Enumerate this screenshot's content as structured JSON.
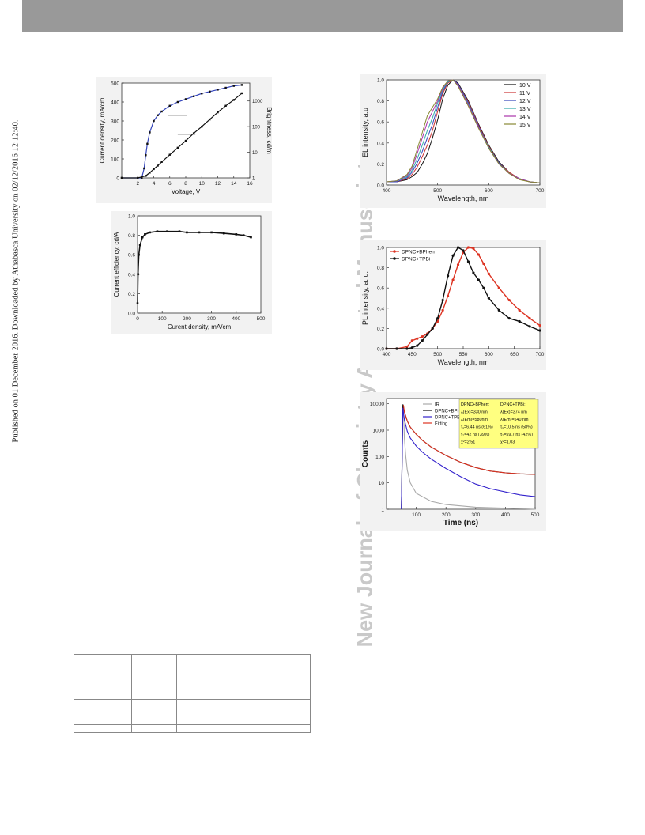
{
  "sidenote": "Published on 01 December 2016. Downloaded by Athabasca University on 02/12/2016 12:12:40.",
  "watermark": "New Journal of Chemistry Accepted Manuscript",
  "colors": {
    "header_bar": "#999999",
    "watermark": "#c9c9c9",
    "blue": "#3344bb",
    "red": "#dd3322",
    "black": "#111111",
    "legend_yellow": "#ffff80"
  },
  "chart_data": [
    {
      "id": "jvl",
      "type": "line",
      "xlabel": "Voltage, V",
      "ylabel": "Current density, mA/cm",
      "ylabel_right": "Brightness, cd/m",
      "xlim": [
        0,
        16
      ],
      "ylim": [
        0,
        500
      ],
      "x_ticks": [
        "2",
        "4",
        "6",
        "8",
        "10",
        "12",
        "14",
        "16"
      ],
      "y_ticks": [
        "0",
        "100",
        "200",
        "300",
        "400",
        "500"
      ],
      "y2_ticks": [
        "1",
        "10",
        "100",
        "1000"
      ],
      "series": [
        {
          "color": "blue",
          "axis": "left",
          "x": [
            0,
            2.5,
            2.8,
            3.0,
            3.2,
            3.5,
            4.0,
            4.5,
            5,
            6,
            7,
            8,
            9,
            10,
            11,
            12,
            13,
            14,
            15
          ],
          "y": [
            0,
            0,
            50,
            120,
            180,
            240,
            300,
            330,
            350,
            380,
            400,
            415,
            430,
            445,
            455,
            465,
            475,
            485,
            490
          ]
        },
        {
          "color": "black",
          "axis": "right_log",
          "x": [
            0,
            2,
            3,
            3.5,
            4,
            4.5,
            5,
            6,
            7,
            8,
            9,
            10,
            11,
            12,
            13,
            14,
            15
          ],
          "y": [
            1,
            1,
            1.2,
            1.6,
            2.2,
            3,
            4.2,
            8,
            15,
            28,
            55,
            100,
            190,
            360,
            650,
            1100,
            2000
          ]
        }
      ]
    },
    {
      "id": "ce",
      "type": "scatter",
      "xlabel": "Curent density, mA/cm",
      "ylabel": "Current efficiency, cd/A",
      "xlim": [
        0,
        500
      ],
      "ylim": [
        0,
        1.0
      ],
      "x_ticks": [
        "0",
        "100",
        "200",
        "300",
        "400",
        "500"
      ],
      "y_ticks": [
        "0.0",
        "0.2",
        "0.4",
        "0.6",
        "0.8",
        "1.0"
      ],
      "series": [
        {
          "color": "black",
          "x": [
            0,
            2,
            5,
            10,
            20,
            30,
            50,
            80,
            120,
            170,
            200,
            250,
            300,
            350,
            400,
            430,
            460
          ],
          "y": [
            0.1,
            0.4,
            0.6,
            0.7,
            0.78,
            0.81,
            0.83,
            0.84,
            0.84,
            0.84,
            0.83,
            0.83,
            0.83,
            0.82,
            0.81,
            0.8,
            0.78
          ]
        }
      ]
    },
    {
      "id": "el",
      "type": "line",
      "xlabel": "Wavelength, nm",
      "ylabel": "EL intensity, a.u",
      "xlim": [
        400,
        700
      ],
      "ylim": [
        0,
        1.0
      ],
      "x_ticks": [
        "400",
        "500",
        "600",
        "700"
      ],
      "y_ticks": [
        "0.0",
        "0.2",
        "0.4",
        "0.6",
        "0.8",
        "1.0"
      ],
      "legend": [
        "10 V",
        "11 V",
        "12 V",
        "13 V",
        "14 V",
        "15 V"
      ],
      "series_colors": [
        "#111111",
        "#cc3333",
        "#3344bb",
        "#33aaaa",
        "#aa33aa",
        "#888833"
      ],
      "x": [
        400,
        420,
        440,
        450,
        460,
        470,
        480,
        490,
        500,
        510,
        520,
        530,
        540,
        560,
        580,
        600,
        620,
        640,
        660,
        680,
        700
      ],
      "series": [
        [
          0.03,
          0.03,
          0.05,
          0.08,
          0.12,
          0.2,
          0.3,
          0.45,
          0.62,
          0.82,
          0.95,
          1.0,
          0.97,
          0.8,
          0.58,
          0.38,
          0.22,
          0.12,
          0.06,
          0.03,
          0.02
        ],
        [
          0.03,
          0.03,
          0.06,
          0.1,
          0.17,
          0.27,
          0.38,
          0.52,
          0.7,
          0.87,
          0.97,
          1.0,
          0.96,
          0.79,
          0.57,
          0.37,
          0.21,
          0.12,
          0.06,
          0.03,
          0.02
        ],
        [
          0.03,
          0.03,
          0.07,
          0.12,
          0.21,
          0.32,
          0.45,
          0.58,
          0.74,
          0.89,
          0.98,
          1.0,
          0.96,
          0.78,
          0.56,
          0.36,
          0.21,
          0.11,
          0.06,
          0.03,
          0.02
        ],
        [
          0.03,
          0.04,
          0.08,
          0.14,
          0.25,
          0.38,
          0.52,
          0.64,
          0.78,
          0.91,
          0.98,
          1.0,
          0.95,
          0.77,
          0.55,
          0.36,
          0.2,
          0.11,
          0.06,
          0.03,
          0.02
        ],
        [
          0.03,
          0.04,
          0.09,
          0.16,
          0.3,
          0.45,
          0.6,
          0.7,
          0.8,
          0.92,
          0.99,
          1.0,
          0.95,
          0.76,
          0.55,
          0.35,
          0.2,
          0.11,
          0.06,
          0.03,
          0.02
        ],
        [
          0.03,
          0.04,
          0.1,
          0.18,
          0.34,
          0.5,
          0.66,
          0.74,
          0.82,
          0.93,
          0.99,
          1.0,
          0.94,
          0.75,
          0.54,
          0.35,
          0.2,
          0.11,
          0.05,
          0.03,
          0.02
        ]
      ]
    },
    {
      "id": "pl",
      "type": "scatter",
      "xlabel": "Wavelength, nm",
      "ylabel": "PL intensity, a. u.",
      "xlim": [
        400,
        700
      ],
      "ylim": [
        0,
        1.0
      ],
      "x_ticks": [
        "400",
        "450",
        "500",
        "550",
        "600",
        "650",
        "700"
      ],
      "y_ticks": [
        "0.0",
        "0.2",
        "0.4",
        "0.6",
        "0.8",
        "1.0"
      ],
      "series": [
        {
          "name": "DPNC+BPhen",
          "color": "#dd3322",
          "x": [
            400,
            420,
            440,
            450,
            460,
            470,
            480,
            490,
            500,
            510,
            520,
            530,
            540,
            550,
            560,
            570,
            580,
            590,
            600,
            620,
            640,
            660,
            680,
            700
          ],
          "y": [
            0,
            0,
            0.02,
            0.08,
            0.1,
            0.12,
            0.15,
            0.2,
            0.27,
            0.38,
            0.52,
            0.68,
            0.83,
            0.95,
            1.0,
            0.99,
            0.93,
            0.84,
            0.74,
            0.6,
            0.48,
            0.38,
            0.3,
            0.23
          ]
        },
        {
          "name": "DPNC+TPBi",
          "color": "#111111",
          "x": [
            400,
            420,
            440,
            450,
            460,
            470,
            480,
            490,
            500,
            510,
            520,
            530,
            540,
            550,
            560,
            570,
            580,
            590,
            600,
            620,
            640,
            660,
            680,
            700
          ],
          "y": [
            0,
            0,
            0,
            0.01,
            0.03,
            0.08,
            0.14,
            0.2,
            0.3,
            0.48,
            0.72,
            0.92,
            1.0,
            0.97,
            0.86,
            0.75,
            0.68,
            0.6,
            0.5,
            0.38,
            0.3,
            0.27,
            0.22,
            0.18
          ]
        }
      ]
    },
    {
      "id": "trpl",
      "type": "line",
      "xlabel": "Time (ns)",
      "ylabel": "Counts",
      "xlim": [
        0,
        500
      ],
      "ylim": [
        1,
        10000
      ],
      "yscale": "log",
      "x_ticks": [
        "100",
        "200",
        "300",
        "400",
        "500"
      ],
      "y_ticks": [
        "1",
        "10",
        "100",
        "1000",
        "10000"
      ],
      "series": [
        {
          "name": "IR",
          "color": "#aaaaaa",
          "x": [
            50,
            55,
            58,
            60,
            65,
            70,
            80,
            100,
            150,
            200,
            300,
            400,
            500
          ],
          "y": [
            1,
            9000,
            3000,
            500,
            100,
            30,
            10,
            4,
            2,
            1.5,
            1.2,
            1.1,
            1
          ]
        },
        {
          "name": "DPNC+BPhen",
          "color": "#111111",
          "x": [
            50,
            55,
            60,
            70,
            80,
            100,
            120,
            150,
            200,
            250,
            300,
            350,
            400,
            450,
            500
          ],
          "y": [
            1,
            9500,
            5000,
            2200,
            1300,
            700,
            420,
            230,
            110,
            60,
            38,
            28,
            24,
            22,
            21
          ]
        },
        {
          "name": "DPNC+TPBi",
          "color": "#3322cc",
          "x": [
            50,
            55,
            60,
            70,
            80,
            100,
            120,
            150,
            200,
            250,
            300,
            350,
            400,
            450,
            500
          ],
          "y": [
            1,
            7000,
            2500,
            900,
            500,
            250,
            150,
            80,
            35,
            17,
            9,
            6,
            4.5,
            3.5,
            3
          ]
        },
        {
          "name": "Fitting",
          "color": "#dd3322",
          "x": [
            57,
            60,
            70,
            80,
            100,
            120,
            150,
            200,
            250,
            300,
            350,
            400,
            450,
            500
          ],
          "y": [
            9000,
            5000,
            2200,
            1300,
            700,
            420,
            230,
            110,
            60,
            38,
            28,
            24,
            22,
            21
          ]
        }
      ],
      "box": {
        "col1": [
          "DPNC+BPhen:",
          "λ(Ex)=330 nm",
          "λ(Em)=580nm",
          "τ₁=6.44 ns (61%)",
          "τ₂=42 ns (39%)",
          "χ²=2.51"
        ],
        "col2": [
          "DPNC+TPBi:",
          "λ(Ex)=374 nm",
          "λ(Em)=540 nm",
          "τ₁=10.5 ns (58%)",
          "τ₂=59.7 ns (42%)",
          "χ²=1.03"
        ]
      }
    }
  ]
}
